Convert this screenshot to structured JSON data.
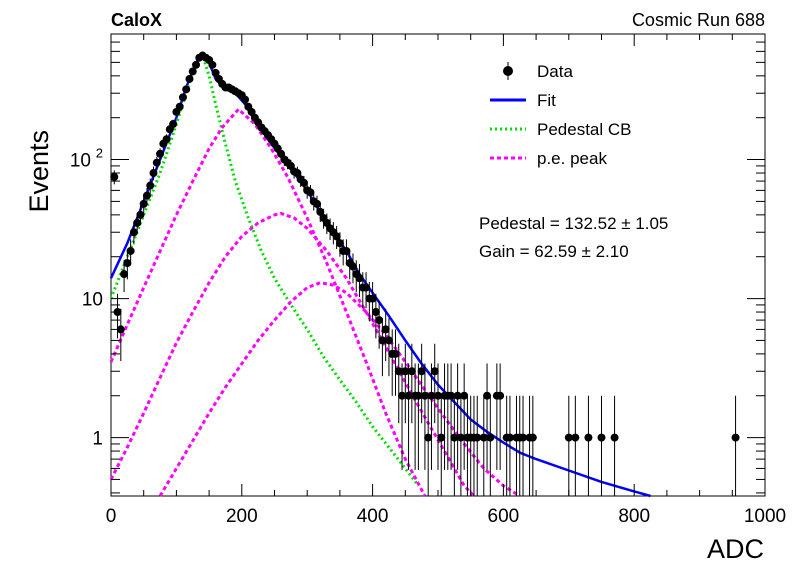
{
  "header": {
    "experiment": "CaloX",
    "run_label": "Cosmic Run 688"
  },
  "fit_results": {
    "pedestal": "Pedestal = 132.52 ± 1.05",
    "gain": "Gain = 62.59 ± 2.10"
  },
  "chart_data": {
    "type": "scatter",
    "xlabel": "ADC",
    "ylabel": "Events",
    "xlim": [
      0,
      1000
    ],
    "ylim": [
      0.38,
      800
    ],
    "y_scale": "log",
    "x_ticks": [
      0,
      200,
      400,
      600,
      800,
      1000
    ],
    "y_ticks": [
      {
        "value": 1,
        "label": "1"
      },
      {
        "value": 10,
        "label": "10"
      },
      {
        "value": 100,
        "label": "10",
        "sup": "2"
      }
    ],
    "grid": false,
    "legend_position": "top-right",
    "legend": [
      {
        "label": "Data",
        "style": "marker",
        "color": "#000000"
      },
      {
        "label": "Fit",
        "style": "solid",
        "color": "#0000ff"
      },
      {
        "label": "Pedestal CB",
        "style": "dotted",
        "color": "#00dd00"
      },
      {
        "label": "p.e. peak",
        "style": "dashed",
        "color": "#ff00ff"
      }
    ],
    "series": [
      {
        "name": "Data",
        "type": "scatter",
        "color": "#000000",
        "points": [
          [
            5,
            75
          ],
          [
            10,
            8
          ],
          [
            15,
            6
          ],
          [
            20,
            15
          ],
          [
            25,
            18
          ],
          [
            30,
            22
          ],
          [
            35,
            30
          ],
          [
            40,
            35
          ],
          [
            45,
            40
          ],
          [
            50,
            48
          ],
          [
            55,
            55
          ],
          [
            60,
            65
          ],
          [
            65,
            80
          ],
          [
            70,
            95
          ],
          [
            75,
            110
          ],
          [
            80,
            130
          ],
          [
            85,
            140
          ],
          [
            90,
            165
          ],
          [
            95,
            180
          ],
          [
            100,
            220
          ],
          [
            105,
            240
          ],
          [
            110,
            280
          ],
          [
            115,
            320
          ],
          [
            120,
            380
          ],
          [
            125,
            430
          ],
          [
            130,
            480
          ],
          [
            135,
            540
          ],
          [
            140,
            560
          ],
          [
            145,
            540
          ],
          [
            150,
            520
          ],
          [
            155,
            480
          ],
          [
            160,
            420
          ],
          [
            165,
            380
          ],
          [
            170,
            350
          ],
          [
            175,
            330
          ],
          [
            180,
            330
          ],
          [
            185,
            320
          ],
          [
            190,
            310
          ],
          [
            195,
            300
          ],
          [
            200,
            290
          ],
          [
            205,
            270
          ],
          [
            210,
            240
          ],
          [
            215,
            220
          ],
          [
            220,
            200
          ],
          [
            225,
            185
          ],
          [
            230,
            170
          ],
          [
            235,
            160
          ],
          [
            240,
            150
          ],
          [
            245,
            140
          ],
          [
            250,
            130
          ],
          [
            255,
            120
          ],
          [
            260,
            110
          ],
          [
            265,
            100
          ],
          [
            270,
            95
          ],
          [
            275,
            90
          ],
          [
            280,
            82
          ],
          [
            285,
            80
          ],
          [
            290,
            72
          ],
          [
            295,
            68
          ],
          [
            300,
            60
          ],
          [
            305,
            58
          ],
          [
            310,
            50
          ],
          [
            315,
            48
          ],
          [
            320,
            42
          ],
          [
            325,
            38
          ],
          [
            330,
            35
          ],
          [
            335,
            32
          ],
          [
            340,
            30
          ],
          [
            345,
            28
          ],
          [
            350,
            25
          ],
          [
            355,
            22
          ],
          [
            360,
            22
          ],
          [
            365,
            18
          ],
          [
            370,
            17
          ],
          [
            375,
            15
          ],
          [
            380,
            14
          ],
          [
            385,
            12
          ],
          [
            390,
            12
          ],
          [
            395,
            10
          ],
          [
            400,
            10
          ],
          [
            405,
            8
          ],
          [
            410,
            7
          ],
          [
            415,
            5
          ],
          [
            420,
            6
          ],
          [
            425,
            5
          ],
          [
            430,
            4
          ],
          [
            435,
            4
          ],
          [
            440,
            3
          ],
          [
            445,
            2
          ],
          [
            450,
            3
          ],
          [
            455,
            2
          ],
          [
            460,
            3
          ],
          [
            465,
            2
          ],
          [
            470,
            2
          ],
          [
            475,
            3
          ],
          [
            480,
            2
          ],
          [
            485,
            1
          ],
          [
            490,
            2
          ],
          [
            495,
            3
          ],
          [
            500,
            2
          ],
          [
            505,
            1
          ],
          [
            510,
            2
          ],
          [
            515,
            2
          ],
          [
            520,
            2
          ],
          [
            525,
            1
          ],
          [
            530,
            2
          ],
          [
            535,
            1
          ],
          [
            540,
            2
          ],
          [
            545,
            1
          ],
          [
            550,
            1
          ],
          [
            555,
            1
          ],
          [
            560,
            1
          ],
          [
            570,
            1
          ],
          [
            575,
            2
          ],
          [
            580,
            1
          ],
          [
            590,
            2
          ],
          [
            595,
            2
          ],
          [
            605,
            1
          ],
          [
            610,
            1
          ],
          [
            620,
            1
          ],
          [
            625,
            1
          ],
          [
            630,
            1
          ],
          [
            640,
            1
          ],
          [
            645,
            1
          ],
          [
            700,
            1
          ],
          [
            710,
            1
          ],
          [
            730,
            1
          ],
          [
            750,
            1
          ],
          [
            770,
            1
          ],
          [
            955,
            1
          ]
        ]
      },
      {
        "name": "Fit",
        "type": "line",
        "color": "#0000ff",
        "points": [
          [
            0,
            14
          ],
          [
            25,
            25
          ],
          [
            50,
            50
          ],
          [
            75,
            100
          ],
          [
            100,
            200
          ],
          [
            115,
            330
          ],
          [
            130,
            500
          ],
          [
            140,
            560
          ],
          [
            150,
            500
          ],
          [
            160,
            380
          ],
          [
            175,
            320
          ],
          [
            190,
            300
          ],
          [
            205,
            250
          ],
          [
            220,
            190
          ],
          [
            240,
            140
          ],
          [
            260,
            105
          ],
          [
            280,
            80
          ],
          [
            300,
            60
          ],
          [
            320,
            42
          ],
          [
            340,
            30
          ],
          [
            360,
            22
          ],
          [
            380,
            15
          ],
          [
            400,
            11
          ],
          [
            425,
            7.5
          ],
          [
            450,
            5
          ],
          [
            475,
            3.4
          ],
          [
            500,
            2.4
          ],
          [
            525,
            1.8
          ],
          [
            550,
            1.35
          ],
          [
            575,
            1.1
          ],
          [
            600,
            0.92
          ],
          [
            625,
            0.78
          ],
          [
            650,
            0.7
          ],
          [
            700,
            0.58
          ],
          [
            750,
            0.48
          ],
          [
            800,
            0.41
          ],
          [
            825,
            0.38
          ]
        ]
      },
      {
        "name": "Pedestal CB",
        "type": "line",
        "color": "#00dd00",
        "points": [
          [
            0,
            10
          ],
          [
            25,
            20
          ],
          [
            50,
            40
          ],
          [
            75,
            80
          ],
          [
            100,
            180
          ],
          [
            120,
            360
          ],
          [
            133,
            560
          ],
          [
            140,
            560
          ],
          [
            150,
            400
          ],
          [
            160,
            250
          ],
          [
            175,
            130
          ],
          [
            190,
            70
          ],
          [
            210,
            38
          ],
          [
            230,
            22
          ],
          [
            250,
            14
          ],
          [
            275,
            9
          ],
          [
            300,
            6
          ],
          [
            325,
            3.8
          ],
          [
            350,
            2.6
          ],
          [
            375,
            1.8
          ],
          [
            400,
            1.2
          ],
          [
            425,
            0.85
          ],
          [
            450,
            0.6
          ],
          [
            470,
            0.45
          ]
        ]
      },
      {
        "name": "p.e. peak",
        "type": "line",
        "color": "#ff00ff",
        "points": [
          [
            0,
            3.5
          ],
          [
            25,
            6.5
          ],
          [
            50,
            12
          ],
          [
            75,
            22
          ],
          [
            100,
            40
          ],
          [
            125,
            70
          ],
          [
            150,
            120
          ],
          [
            170,
            170
          ],
          [
            195,
            230
          ],
          [
            220,
            180
          ],
          [
            245,
            120
          ],
          [
            270,
            75
          ],
          [
            300,
            38
          ],
          [
            330,
            18
          ],
          [
            360,
            8
          ],
          [
            390,
            3.5
          ],
          [
            420,
            1.5
          ],
          [
            450,
            0.7
          ],
          [
            480,
            0.38
          ]
        ]
      },
      {
        "name": "p.e. peak",
        "type": "line",
        "color": "#ff00ff",
        "points": [
          [
            0,
            0.5
          ],
          [
            25,
            0.85
          ],
          [
            50,
            1.5
          ],
          [
            75,
            2.7
          ],
          [
            100,
            4.8
          ],
          [
            125,
            8
          ],
          [
            150,
            13
          ],
          [
            175,
            20
          ],
          [
            200,
            28
          ],
          [
            225,
            35
          ],
          [
            250,
            40
          ],
          [
            260,
            41
          ],
          [
            280,
            38
          ],
          [
            300,
            32
          ],
          [
            330,
            22
          ],
          [
            360,
            14
          ],
          [
            390,
            8
          ],
          [
            420,
            4.5
          ],
          [
            450,
            2.5
          ],
          [
            480,
            1.4
          ],
          [
            510,
            0.8
          ],
          [
            540,
            0.45
          ],
          [
            555,
            0.38
          ]
        ]
      },
      {
        "name": "p.e. peak",
        "type": "line",
        "color": "#ff00ff",
        "points": [
          [
            75,
            0.38
          ],
          [
            100,
            0.6
          ],
          [
            125,
            0.95
          ],
          [
            150,
            1.5
          ],
          [
            175,
            2.3
          ],
          [
            200,
            3.4
          ],
          [
            225,
            5
          ],
          [
            250,
            7
          ],
          [
            275,
            9.5
          ],
          [
            300,
            12
          ],
          [
            320,
            13
          ],
          [
            340,
            12.5
          ],
          [
            360,
            11
          ],
          [
            390,
            8
          ],
          [
            420,
            5.5
          ],
          [
            450,
            3.5
          ],
          [
            480,
            2.2
          ],
          [
            510,
            1.4
          ],
          [
            540,
            0.9
          ],
          [
            570,
            0.6
          ],
          [
            600,
            0.45
          ],
          [
            625,
            0.38
          ]
        ]
      }
    ]
  }
}
